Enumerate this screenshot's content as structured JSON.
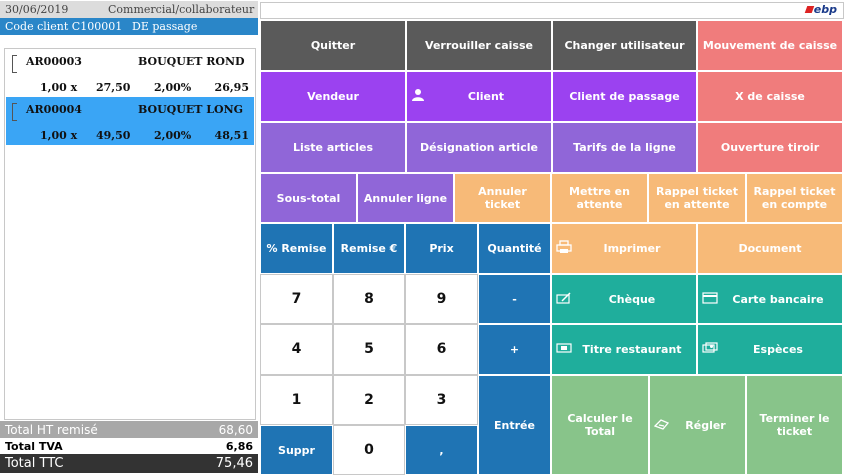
{
  "header": {
    "date": "30/06/2019",
    "collaborator_label": "Commercial/collaborateur",
    "client_code": "Code client C100001",
    "client_name": "DE passage"
  },
  "lines": [
    {
      "code": "AR00003",
      "designation": "BOUQUET ROND",
      "qty": "1,00 x",
      "price": "27,50",
      "discount": "2,00%",
      "total": "26,95",
      "selected": false
    },
    {
      "code": "AR00004",
      "designation": "BOUQUET LONG",
      "qty": "1,00 x",
      "price": "49,50",
      "discount": "2,00%",
      "total": "48,51",
      "selected": true
    }
  ],
  "totals": {
    "ht_label": "Total HT remisé",
    "ht_value": "68,60",
    "tva_label": "Total TVA",
    "tva_value": "6,86",
    "ttc_label": "Total TTC",
    "ttc_value": "75,46"
  },
  "logo_text": "ebp",
  "buttons": {
    "quitter": "Quitter",
    "verrouiller": "Verrouiller caisse",
    "changer_utilisateur": "Changer utilisateur",
    "mouvement_caisse": "Mouvement de caisse",
    "vendeur": "Vendeur",
    "client": "Client",
    "client_passage": "Client de passage",
    "x_caisse": "X de caisse",
    "liste_articles": "Liste articles",
    "designation_article": "Désignation article",
    "tarifs_ligne": "Tarifs de la ligne",
    "ouverture_tiroir": "Ouverture tiroir",
    "sous_total": "Sous-total",
    "annuler_ligne": "Annuler ligne",
    "annuler_ticket": "Annuler ticket",
    "mettre_attente": "Mettre en attente",
    "rappel_attente": "Rappel ticket en attente",
    "rappel_compte": "Rappel ticket en compte",
    "pct_remise": "% Remise",
    "remise_eur": "Remise €",
    "prix": "Prix",
    "quantite": "Quantité",
    "imprimer": "Imprimer",
    "document": "Document",
    "moins": "-",
    "plus": "+",
    "cheque": "Chèque",
    "carte_bancaire": "Carte bancaire",
    "titre_restaurant": "Titre restaurant",
    "especes": "Espèces",
    "entree": "Entrée",
    "calculer_total": "Calculer le Total",
    "regler": "Régler",
    "terminer_ticket": "Terminer le ticket",
    "suppr": "Suppr",
    "virgule": ",",
    "k0": "0",
    "k1": "1",
    "k2": "2",
    "k3": "3",
    "k4": "4",
    "k5": "5",
    "k6": "6",
    "k7": "7",
    "k8": "8",
    "k9": "9"
  },
  "colors": {
    "gray": "#5a5a5a",
    "red": "#f07c7c",
    "violet": "#9b42f0",
    "lavender": "#a585e6",
    "orange": "#f7ba78",
    "blue": "#1f74b4",
    "teal": "#1fae9c",
    "green": "#88c48a",
    "selected_row": "#3aa5f5",
    "client_bar": "#2a86c8"
  },
  "icons": {
    "client": "person-icon",
    "imprimer": "printer-icon",
    "cheque": "cheque-icon",
    "carte_bancaire": "card-icon",
    "titre_restaurant": "voucher-icon",
    "especes": "cash-icon",
    "regler": "pay-icon"
  }
}
